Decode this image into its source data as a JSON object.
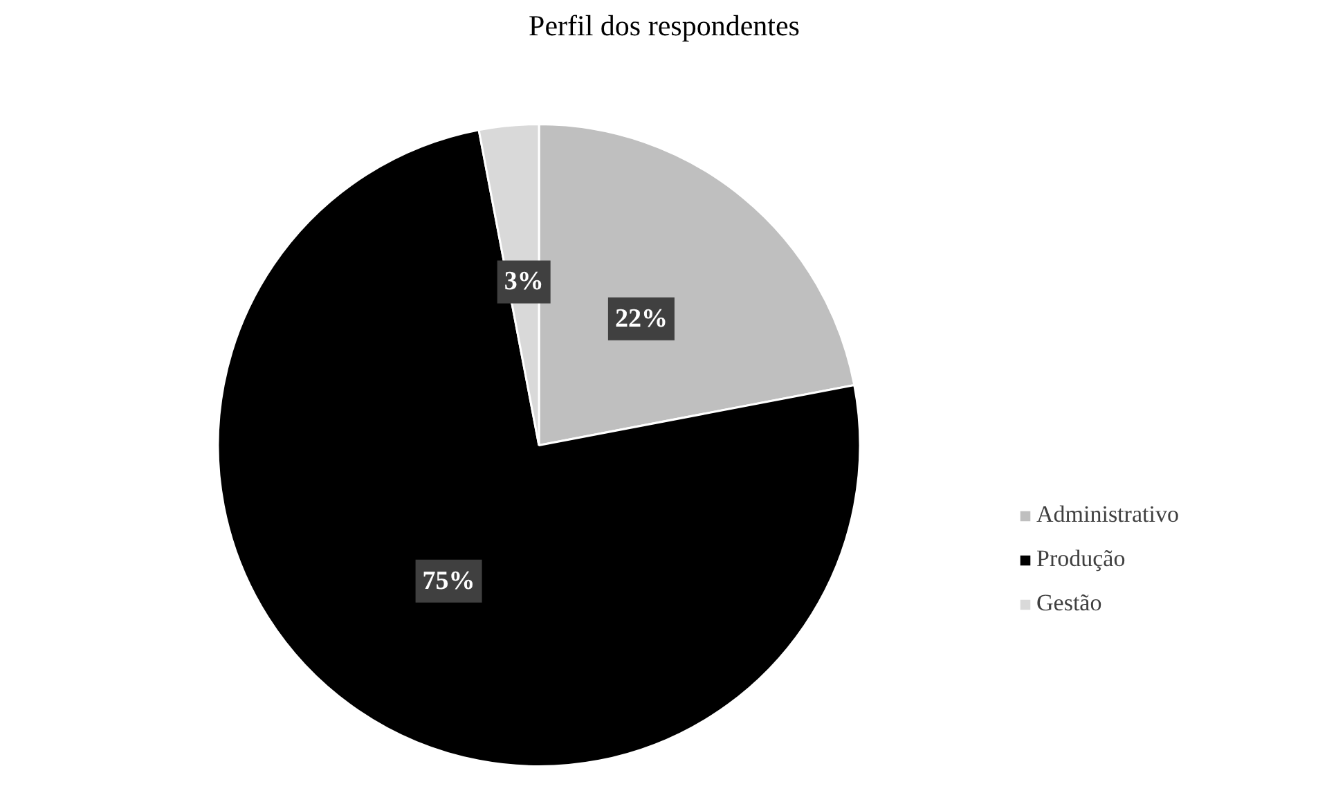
{
  "chart_data": {
    "type": "pie",
    "title": "Perfil dos respondentes",
    "categories": [
      "Administrativo",
      "Produção",
      "Gestão"
    ],
    "values": [
      22,
      75,
      3
    ],
    "colors": [
      "#bfbfbf",
      "#000000",
      "#d9d9d9"
    ],
    "value_labels": [
      "22%",
      "75%",
      "3%"
    ],
    "legend": "right"
  }
}
